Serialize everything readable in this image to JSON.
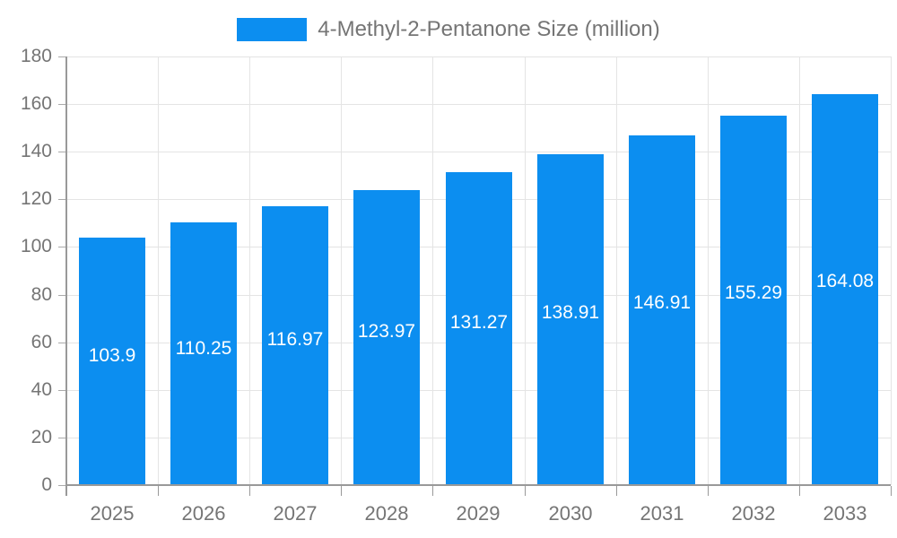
{
  "legend": {
    "label": "4-Methyl-2-Pentanone Size (million)"
  },
  "chart_data": {
    "type": "bar",
    "title": "4-Methyl-2-Pentanone Size (million)",
    "categories": [
      "2025",
      "2026",
      "2027",
      "2028",
      "2029",
      "2030",
      "2031",
      "2032",
      "2033"
    ],
    "values": [
      103.9,
      110.25,
      116.97,
      123.97,
      131.27,
      138.91,
      146.91,
      155.29,
      164.08
    ],
    "value_labels": [
      "103.9",
      "110.25",
      "116.97",
      "123.97",
      "131.27",
      "138.91",
      "146.91",
      "155.29",
      "164.08"
    ],
    "xlabel": "",
    "ylabel": "",
    "ylim": [
      0,
      180
    ],
    "ytick_step": 20,
    "ytick_labels": [
      "0",
      "20",
      "40",
      "60",
      "80",
      "100",
      "120",
      "140",
      "160",
      "180"
    ],
    "grid": true,
    "legend_position": "top",
    "colors": {
      "bar": "#0c8ef0",
      "bar_value_text": "#ffffff",
      "axis_text": "#757575",
      "axis_line": "#999999",
      "tick_line": "#aaaaaa",
      "gridline": "#e4e4e4"
    }
  }
}
